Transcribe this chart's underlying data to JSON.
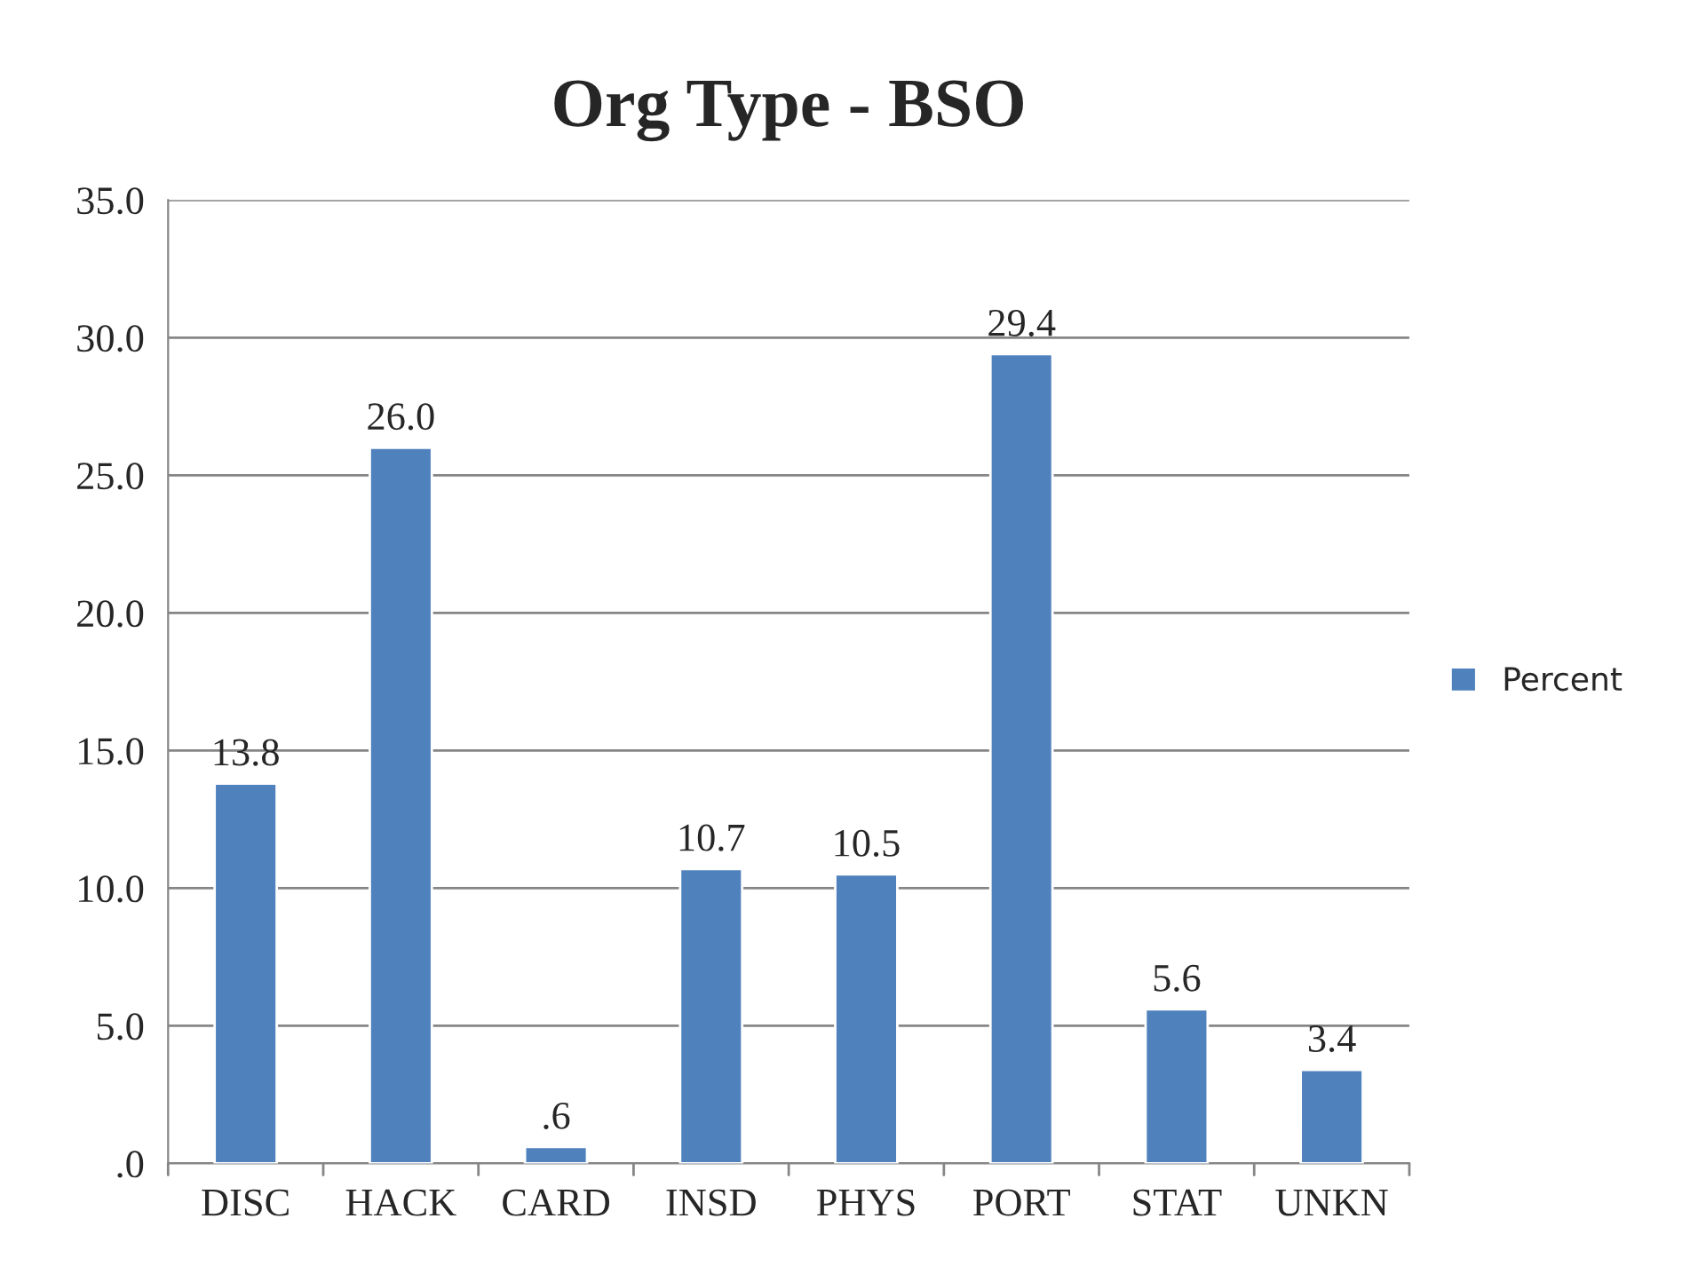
{
  "chart_data": {
    "type": "bar",
    "title": "Org Type - BSO",
    "categories": [
      "DISC",
      "HACK",
      "CARD",
      "INSD",
      "PHYS",
      "PORT",
      "STAT",
      "UNKN"
    ],
    "series": [
      {
        "name": "Percent",
        "color": "#4f81bd",
        "values": [
          13.8,
          26.0,
          0.6,
          10.7,
          10.5,
          29.4,
          5.6,
          3.4
        ]
      }
    ],
    "value_labels": [
      "13.8",
      "26.0",
      ".6",
      "10.7",
      "10.5",
      "29.4",
      "5.6",
      "3.4"
    ],
    "ylim": [
      0,
      35
    ],
    "yticks": [
      {
        "value": 0,
        "label": ".0"
      },
      {
        "value": 5,
        "label": "5.0"
      },
      {
        "value": 10,
        "label": "10.0"
      },
      {
        "value": 15,
        "label": "15.0"
      },
      {
        "value": 20,
        "label": "20.0"
      },
      {
        "value": 25,
        "label": "25.0"
      },
      {
        "value": 30,
        "label": "30.0"
      },
      {
        "value": 35,
        "label": "35.0"
      }
    ],
    "grid": "y",
    "legend": "right"
  }
}
